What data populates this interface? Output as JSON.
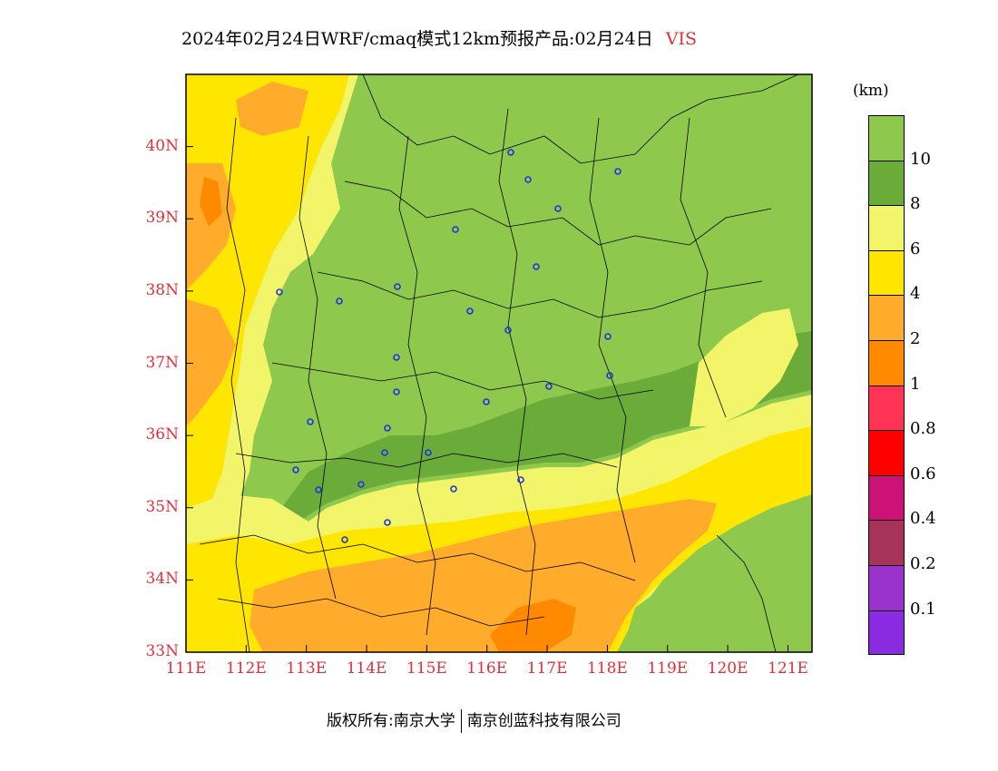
{
  "title": {
    "main": "2024年02月24日WRF/cmaq模式12km预报产品:02月24日",
    "variable": "VIS"
  },
  "map": {
    "lat_ticks": [
      "40N",
      "39N",
      "38N",
      "37N",
      "36N",
      "35N",
      "34N",
      "33N"
    ],
    "lon_ticks": [
      "111E",
      "112E",
      "113E",
      "114E",
      "115E",
      "116E",
      "117E",
      "118E",
      "119E",
      "120E",
      "121E"
    ],
    "lat_range": [
      33,
      41
    ],
    "lon_range": [
      111,
      121.4
    ]
  },
  "legend": {
    "unit": "(km)",
    "levels": [
      {
        "label": "10",
        "color": "#8ec94e"
      },
      {
        "label": "8",
        "color": "#6aab3a"
      },
      {
        "label": "6",
        "color": "#f2f56a"
      },
      {
        "label": "4",
        "color": "#ffe600"
      },
      {
        "label": "2",
        "color": "#ffab2b"
      },
      {
        "label": "1",
        "color": "#ff8a00"
      },
      {
        "label": "0.8",
        "color": "#ff3355"
      },
      {
        "label": "0.6",
        "color": "#ff0000"
      },
      {
        "label": "0.4",
        "color": "#cc1177"
      },
      {
        "label": "0.2",
        "color": "#a8335a"
      },
      {
        "label": "0.1",
        "color": "#9933cc"
      },
      {
        "label": "",
        "color": "#8a2be2"
      }
    ]
  },
  "footer": {
    "left": "版权所有:南京大学",
    "right": "南京创蓝科技有限公司"
  }
}
